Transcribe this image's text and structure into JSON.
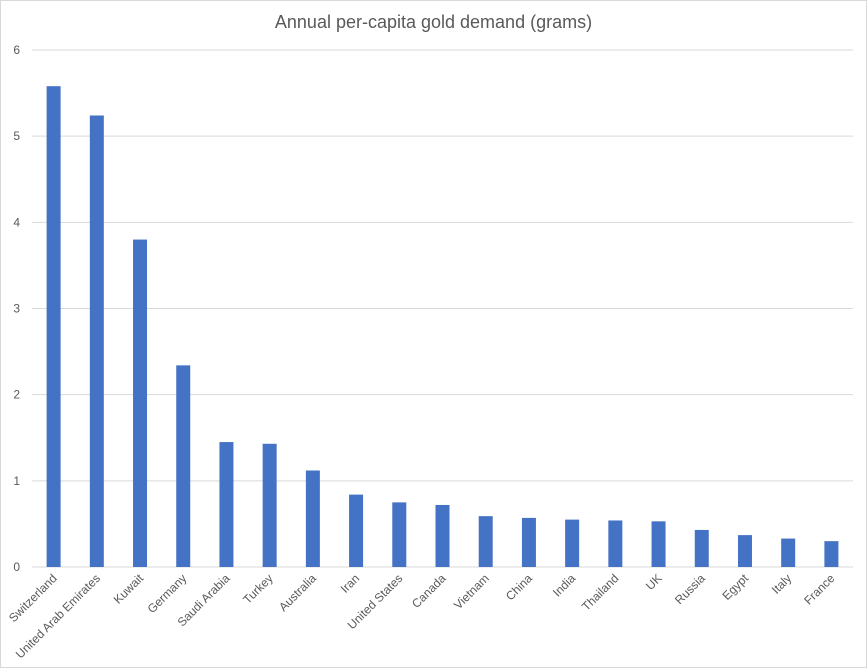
{
  "chart_data": {
    "type": "bar",
    "title": "Annual per-capita gold demand (grams)",
    "xlabel": "",
    "ylabel": "",
    "ylim": [
      0,
      6
    ],
    "yticks": [
      0,
      1,
      2,
      3,
      4,
      5,
      6
    ],
    "grid": true,
    "legend": "none",
    "bar_color": "#4472c4",
    "grid_color": "#d9d9d9",
    "categories": [
      "Switzerland",
      "United Arab Emirates",
      "Kuwait",
      "Germany",
      "Saudi Arabia",
      "Turkey",
      "Australia",
      "Iran",
      "United States",
      "Canada",
      "Vietnam",
      "China",
      "India",
      "Thailand",
      "UK",
      "Russia",
      "Egypt",
      "Italy",
      "France"
    ],
    "values": [
      5.58,
      5.24,
      3.8,
      2.34,
      1.45,
      1.43,
      1.12,
      0.84,
      0.75,
      0.72,
      0.59,
      0.57,
      0.55,
      0.54,
      0.53,
      0.43,
      0.37,
      0.33,
      0.3
    ]
  }
}
